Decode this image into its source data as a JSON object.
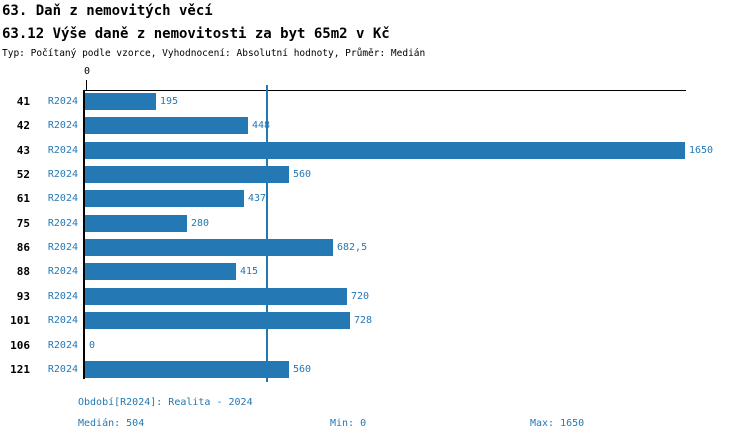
{
  "header": {
    "title": "63. Daň z nemovitých věcí",
    "subtitle": "63.12 Výše daně z nemovitosti za byt 65m2 v Kč",
    "meta": "Typ: Počítaný podle vzorce, Vyhodnocení: Absolutní hodnoty, Průměr: Medián"
  },
  "chart_data": {
    "type": "bar",
    "orientation": "horizontal",
    "title": "63.12 Výše daně z nemovitosti za byt 65m2 v Kč",
    "categories": [
      "41",
      "42",
      "43",
      "52",
      "61",
      "75",
      "86",
      "88",
      "93",
      "101",
      "106",
      "121"
    ],
    "series": [
      {
        "name": "R2024",
        "values": [
          195,
          448,
          1650,
          560,
          437,
          280,
          682.5,
          415,
          720,
          728,
          0,
          560
        ]
      }
    ],
    "value_labels": [
      "195",
      "448",
      "1650",
      "560",
      "437",
      "280",
      "682,5",
      "415",
      "720",
      "728",
      "0",
      "560"
    ],
    "xlim": [
      0,
      1650
    ],
    "x_tick_labels": [
      "0"
    ],
    "median_reference_line": 504,
    "bar_color": "#2478b4",
    "legend_position": "none",
    "grid": false
  },
  "footer": {
    "period": "Období[R2024]: Realita - 2024",
    "median": "Medián: 504",
    "min": "Min: 0",
    "max": "Max: 1650"
  }
}
